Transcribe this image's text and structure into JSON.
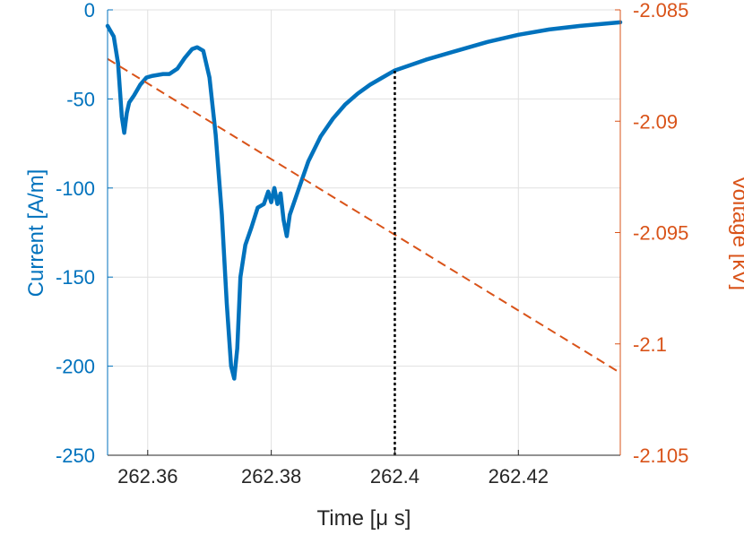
{
  "chart_data": {
    "type": "line",
    "xlabel": "Time [μ s]",
    "ylabel_left": "Current [A/m]",
    "ylabel_right": "Voltage [kV]",
    "xlim": [
      262.3535,
      262.4365
    ],
    "ylim_left": [
      -250,
      0
    ],
    "ylim_right": [
      -2.105,
      -2.085
    ],
    "x_ticks": [
      "262.36",
      "262.38",
      "262.4",
      "262.42"
    ],
    "y_left_ticks": [
      "0",
      "-50",
      "-100",
      "-150",
      "-200",
      "-250"
    ],
    "y_right_ticks": [
      "-2.085",
      "-2.09",
      "-2.095",
      "-2.1",
      "-2.105"
    ],
    "grid": true,
    "colors": {
      "current": "#0072BD",
      "voltage": "#D95319",
      "marker": "#000000",
      "grid": "#e0e0e0",
      "axis": "#262626"
    },
    "series": [
      {
        "axis": "left",
        "style": "solid",
        "points": [
          [
            262.3535,
            -9
          ],
          [
            262.3545,
            -15
          ],
          [
            262.3552,
            -30
          ],
          [
            262.3558,
            -60
          ],
          [
            262.3562,
            -69
          ],
          [
            262.3566,
            -58
          ],
          [
            262.357,
            -52
          ],
          [
            262.3578,
            -48
          ],
          [
            262.3588,
            -42
          ],
          [
            262.3598,
            -38
          ],
          [
            262.3608,
            -37
          ],
          [
            262.3625,
            -36
          ],
          [
            262.3635,
            -36
          ],
          [
            262.3648,
            -33
          ],
          [
            262.366,
            -27
          ],
          [
            262.3672,
            -22
          ],
          [
            262.368,
            -21
          ],
          [
            262.369,
            -23
          ],
          [
            262.37,
            -38
          ],
          [
            262.371,
            -70
          ],
          [
            262.372,
            -115
          ],
          [
            262.3728,
            -165
          ],
          [
            262.3735,
            -200
          ],
          [
            262.374,
            -207
          ],
          [
            262.3745,
            -190
          ],
          [
            262.375,
            -150
          ],
          [
            262.3758,
            -132
          ],
          [
            262.3768,
            -122
          ],
          [
            262.3778,
            -111
          ],
          [
            262.3788,
            -109
          ],
          [
            262.3795,
            -102
          ],
          [
            262.38,
            -108
          ],
          [
            262.3805,
            -100
          ],
          [
            262.381,
            -109
          ],
          [
            262.3815,
            -103
          ],
          [
            262.382,
            -118
          ],
          [
            262.3825,
            -127
          ],
          [
            262.383,
            -115
          ],
          [
            262.3845,
            -100
          ],
          [
            262.386,
            -85
          ],
          [
            262.388,
            -71
          ],
          [
            262.39,
            -61
          ],
          [
            262.392,
            -53
          ],
          [
            262.394,
            -47
          ],
          [
            262.396,
            -42
          ],
          [
            262.398,
            -38
          ],
          [
            262.4,
            -34
          ],
          [
            262.405,
            -28
          ],
          [
            262.41,
            -23
          ],
          [
            262.415,
            -18
          ],
          [
            262.42,
            -14
          ],
          [
            262.425,
            -11
          ],
          [
            262.43,
            -9
          ],
          [
            262.4365,
            -7
          ]
        ]
      },
      {
        "axis": "right",
        "style": "dashed",
        "points": [
          [
            262.3535,
            -2.0872
          ],
          [
            262.4365,
            -2.1013
          ]
        ]
      }
    ],
    "marker_line": {
      "x": 262.4,
      "style": "dotted"
    }
  }
}
